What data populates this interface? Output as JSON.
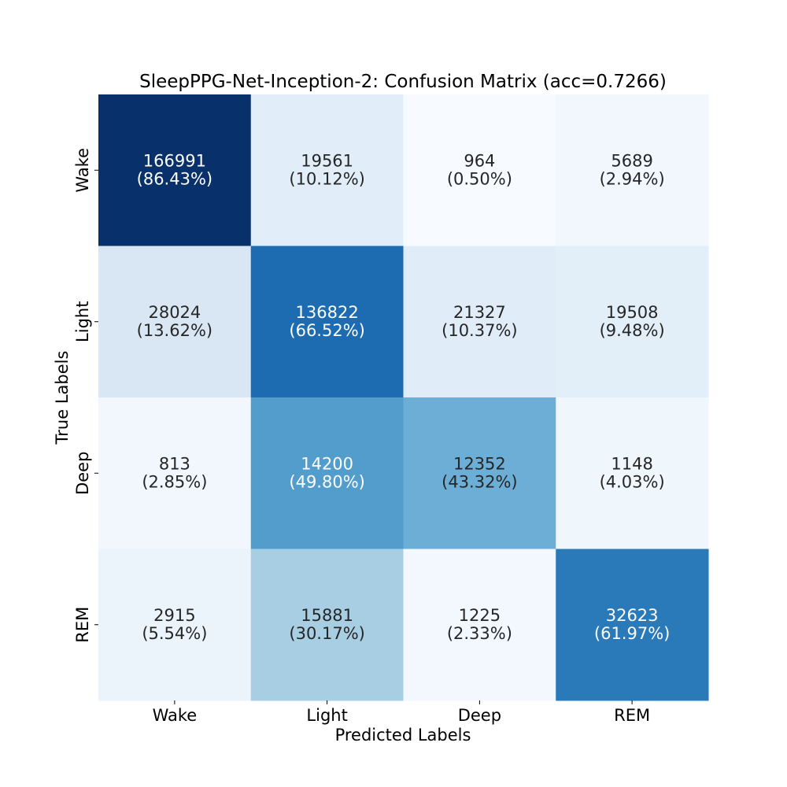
{
  "chart_data": {
    "type": "heatmap",
    "title": "SleepPPG-Net-Inception-2: Confusion Matrix (acc=0.7266)",
    "xlabel": "Predicted Labels",
    "ylabel": "True Labels",
    "x_categories": [
      "Wake",
      "Light",
      "Deep",
      "REM"
    ],
    "y_categories": [
      "Wake",
      "Light",
      "Deep",
      "REM"
    ],
    "counts": [
      [
        166991,
        19561,
        964,
        5689
      ],
      [
        28024,
        136822,
        21327,
        19508
      ],
      [
        813,
        14200,
        12352,
        1148
      ],
      [
        2915,
        15881,
        1225,
        32623
      ]
    ],
    "percent_labels": [
      [
        "(86.43%)",
        "(10.12%)",
        "(0.50%)",
        "(2.94%)"
      ],
      [
        "(13.62%)",
        "(66.52%)",
        "(10.37%)",
        "(9.48%)"
      ],
      [
        "(2.85%)",
        "(49.80%)",
        "(43.32%)",
        "(4.03%)"
      ],
      [
        "(5.54%)",
        "(30.17%)",
        "(2.33%)",
        "(61.97%)"
      ]
    ],
    "row_normalized": [
      [
        0.8643,
        0.1012,
        0.005,
        0.0294
      ],
      [
        0.1362,
        0.6652,
        0.1037,
        0.0948
      ],
      [
        0.0285,
        0.498,
        0.4332,
        0.0403
      ],
      [
        0.0554,
        0.3017,
        0.0233,
        0.6197
      ]
    ],
    "colormap": "Blues",
    "colorbar": false,
    "grid": false
  }
}
